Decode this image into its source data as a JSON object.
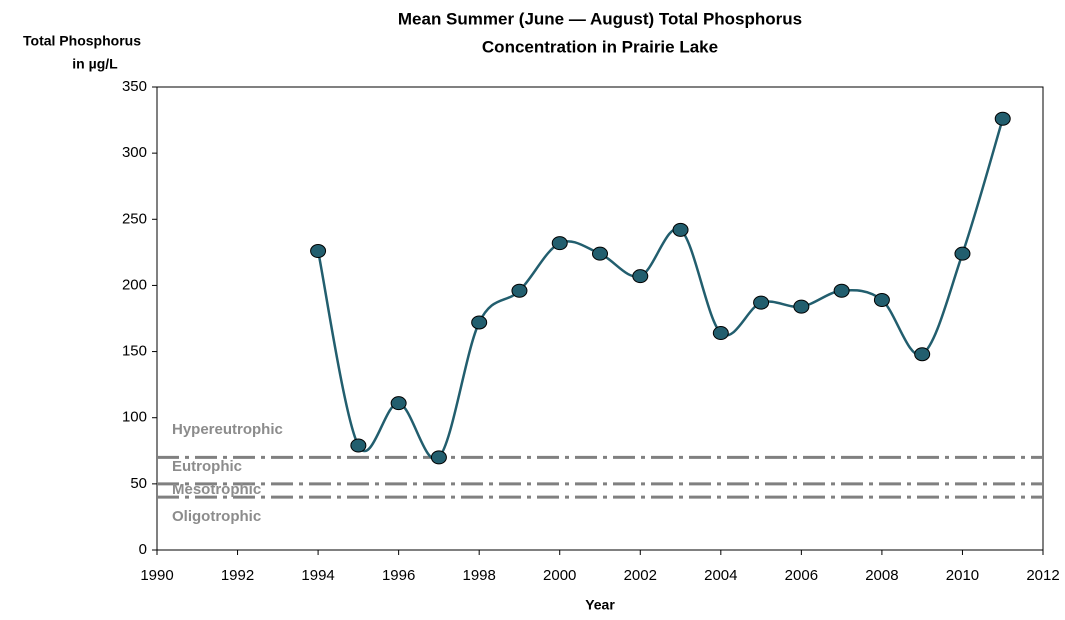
{
  "chart_data": {
    "type": "line",
    "title": [
      "Mean Summer (June — August) Total Phosphorus",
      "Concentration in Prairie Lake"
    ],
    "ylabel": [
      "Total Phosphorus",
      "in µg/L"
    ],
    "xlabel": "Year",
    "x": [
      1994,
      1995,
      1996,
      1997,
      1998,
      1999,
      2000,
      2001,
      2002,
      2003,
      2004,
      2005,
      2006,
      2007,
      2008,
      2009,
      2010,
      2011
    ],
    "series": [
      {
        "name": "Total Phosphorus",
        "color": "#225e6e",
        "values": [
          226,
          79,
          111,
          70,
          172,
          196,
          232,
          224,
          207,
          242,
          164,
          187,
          184,
          196,
          189,
          148,
          224,
          326
        ]
      }
    ],
    "xlim": [
      1990,
      2012
    ],
    "xticks": [
      1990,
      1992,
      1994,
      1996,
      1998,
      2000,
      2002,
      2004,
      2006,
      2008,
      2010,
      2012
    ],
    "ylim": [
      0,
      350
    ],
    "yticks": [
      0,
      50,
      100,
      150,
      200,
      250,
      300,
      350
    ],
    "grid": false,
    "reference_lines": [
      {
        "value": 70,
        "color": "#808080"
      },
      {
        "value": 50,
        "color": "#808080"
      },
      {
        "value": 40,
        "color": "#808080"
      }
    ],
    "annotations": [
      "Hypereutrophic",
      "Eutrophic",
      "Mesotrophic",
      "Oligotrophic"
    ]
  }
}
